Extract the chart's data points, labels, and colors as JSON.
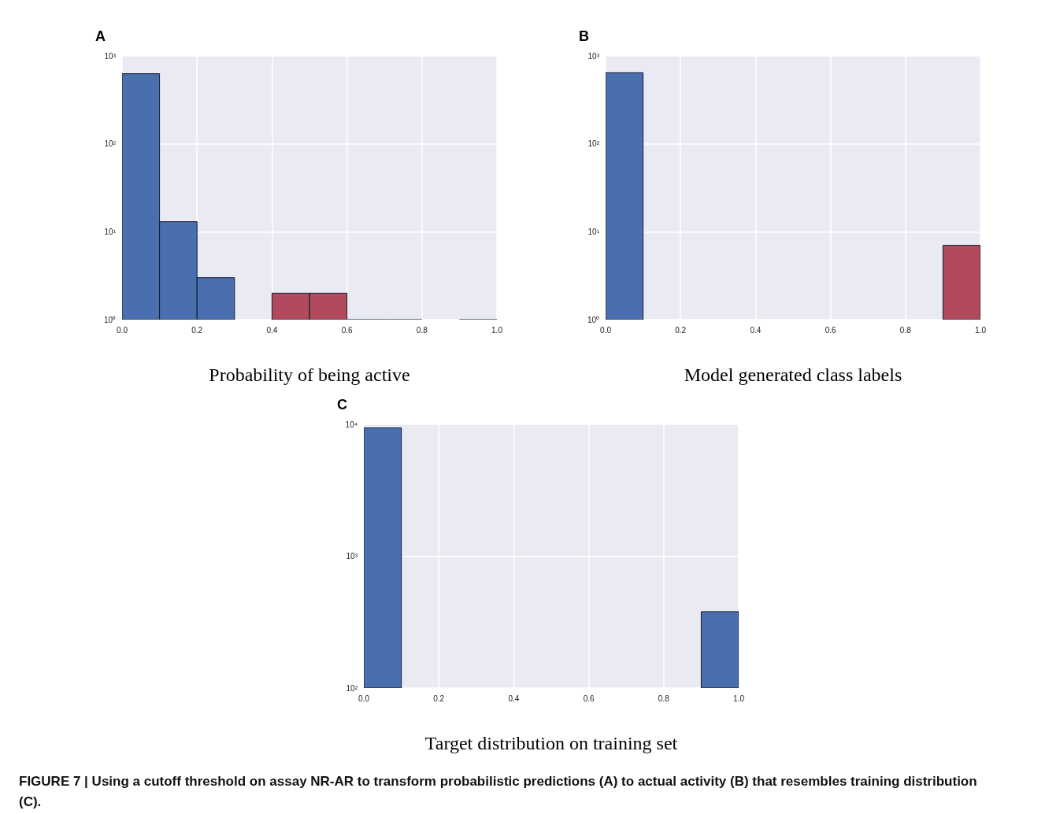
{
  "chart_data": [
    {
      "type": "histogram",
      "title": "A",
      "xlabel": "Probability of being active",
      "bins": [
        0,
        0.1,
        0.2,
        0.3,
        0.4,
        0.5,
        0.6,
        0.7,
        0.8,
        0.9,
        1.0
      ],
      "values": [
        627,
        13,
        3,
        null,
        2,
        2,
        1,
        1,
        null,
        1
      ],
      "colors": [
        "#4a6fae",
        "#4a6fae",
        "#4a6fae",
        null,
        "#b04a5c",
        "#b04a5c",
        "#3a3f55",
        "#3a3f55",
        null,
        "#3a3f55"
      ],
      "log": "y",
      "xlim": [
        0,
        1
      ],
      "xticks": [
        {
          "value": 0,
          "label": "0.0"
        },
        {
          "value": 0.2,
          "label": "0.2"
        },
        {
          "value": 0.4,
          "label": "0.4"
        },
        {
          "value": 0.6,
          "label": "0.6"
        },
        {
          "value": 0.8,
          "label": "0.8"
        },
        {
          "value": 1,
          "label": "1.0"
        }
      ],
      "ylim": [
        1,
        1000
      ],
      "yticks": [
        {
          "value": 1,
          "label": "10⁰"
        },
        {
          "value": 10,
          "label": "10¹"
        },
        {
          "value": 100,
          "label": "10²"
        },
        {
          "value": 1000,
          "label": "10³"
        }
      ],
      "grid": true
    },
    {
      "type": "histogram",
      "title": "B",
      "xlabel": "Model generated class labels",
      "bins": [
        0,
        0.1,
        0.2,
        0.3,
        0.4,
        0.5,
        0.6,
        0.7,
        0.8,
        0.9,
        1.0
      ],
      "values": [
        643,
        null,
        null,
        null,
        null,
        null,
        null,
        null,
        null,
        7
      ],
      "colors": [
        "#4a6fae",
        null,
        null,
        null,
        null,
        null,
        null,
        null,
        null,
        "#b04a5c"
      ],
      "log": "y",
      "xlim": [
        0,
        1
      ],
      "xticks": [
        {
          "value": 0,
          "label": "0.0"
        },
        {
          "value": 0.2,
          "label": "0.2"
        },
        {
          "value": 0.4,
          "label": "0.4"
        },
        {
          "value": 0.6,
          "label": "0.6"
        },
        {
          "value": 0.8,
          "label": "0.8"
        },
        {
          "value": 1,
          "label": "1.0"
        }
      ],
      "ylim": [
        1,
        1000
      ],
      "yticks": [
        {
          "value": 1,
          "label": "10⁰"
        },
        {
          "value": 10,
          "label": "10¹"
        },
        {
          "value": 100,
          "label": "10²"
        },
        {
          "value": 1000,
          "label": "10³"
        }
      ],
      "grid": true
    },
    {
      "type": "histogram",
      "title": "C",
      "xlabel": "Target distribution on training set",
      "bins": [
        0,
        0.1,
        0.2,
        0.3,
        0.4,
        0.5,
        0.6,
        0.7,
        0.8,
        0.9,
        1.0
      ],
      "values": [
        9400,
        null,
        null,
        null,
        null,
        null,
        null,
        null,
        null,
        380
      ],
      "color": "#4a6fae",
      "log": "y",
      "xlim": [
        0,
        1
      ],
      "xticks": [
        {
          "value": 0,
          "label": "0.0"
        },
        {
          "value": 0.2,
          "label": "0.2"
        },
        {
          "value": 0.4,
          "label": "0.4"
        },
        {
          "value": 0.6,
          "label": "0.6"
        },
        {
          "value": 0.8,
          "label": "0.8"
        },
        {
          "value": 1,
          "label": "1.0"
        }
      ],
      "ylim": [
        100,
        10000
      ],
      "yticks": [
        {
          "value": 100,
          "label": "10²"
        },
        {
          "value": 1000,
          "label": "10³"
        },
        {
          "value": 10000,
          "label": "10⁴"
        }
      ],
      "grid": true,
      "annotations": [
        "FIGURE 7 | Using a cutoff threshold on assay NR-AR to transform probabilistic predictions (A) to actual activity (B) that resembles training distribution (C)."
      ]
    }
  ]
}
